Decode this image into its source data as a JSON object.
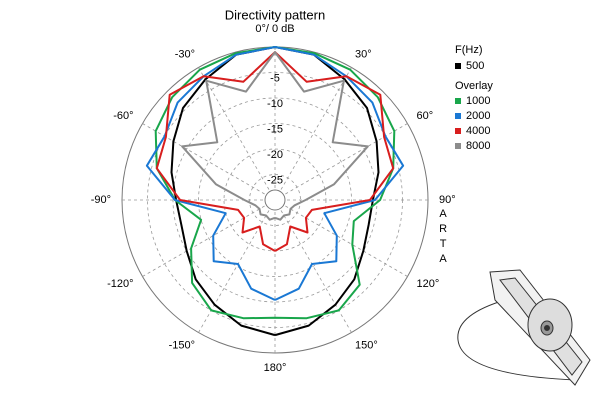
{
  "chart_data": {
    "type": "polar",
    "title": "Directivity pattern",
    "theta": [
      -180,
      -165,
      -150,
      -135,
      -120,
      -105,
      -90,
      -75,
      -60,
      -45,
      -30,
      -15,
      0,
      15,
      30,
      45,
      60,
      75,
      90,
      105,
      120,
      135,
      150,
      165,
      180
    ],
    "rlim": [
      -30,
      0
    ],
    "rticks": [
      -5,
      -10,
      -15,
      -20,
      -25
    ],
    "thetaticks": [
      {
        "value": 0,
        "label": "0°/ 0 dB"
      },
      {
        "value": 30,
        "label": "30°"
      },
      {
        "value": 60,
        "label": "60°"
      },
      {
        "value": 90,
        "label": "90°"
      },
      {
        "value": 120,
        "label": "120°"
      },
      {
        "value": 150,
        "label": "150°"
      },
      {
        "value": 180,
        "label": "180°"
      },
      {
        "value": -150,
        "label": "-150°"
      },
      {
        "value": -120,
        "label": "-120°"
      },
      {
        "value": -90,
        "label": "-90°"
      },
      {
        "value": -60,
        "label": "-60°"
      },
      {
        "value": -30,
        "label": "-30°"
      }
    ],
    "grid": true,
    "legend_title": "F(Hz)",
    "legend_subtitle": "Overlay",
    "watermark": "ARTA",
    "series": [
      {
        "name": "500",
        "color": "#000000",
        "values": [
          -3.5,
          -4.5,
          -6.3,
          -8,
          -10,
          -11,
          -10.6,
          -9,
          -7,
          -4.5,
          -2.7,
          -0.5,
          0,
          -0.5,
          -2.7,
          -4.5,
          -7,
          -9,
          -10.8,
          -11,
          -10,
          -8,
          -6.3,
          -4.5,
          -3.5
        ]
      },
      {
        "name": "1000",
        "color": "#19a64b",
        "values": [
          -6.9,
          -6,
          -5,
          -7,
          -11,
          -15,
          -10.4,
          -6,
          -3,
          -1.5,
          -0.5,
          -0.2,
          0,
          -0.2,
          -0.5,
          -1.5,
          -3,
          -6,
          -9.4,
          -14,
          -12.5,
          -6.5,
          -5,
          -6,
          -6.9
        ]
      },
      {
        "name": "2000",
        "color": "#1a78d4",
        "values": [
          -10.4,
          -12,
          -15.5,
          -13,
          -16,
          -20,
          -10.4,
          -4,
          -5,
          -3,
          -2,
          -0.5,
          0,
          -0.5,
          -2,
          -3,
          -5,
          -4,
          -10.4,
          -20,
          -16,
          -13,
          -15.5,
          -12,
          -10.4
        ]
      },
      {
        "name": "4000",
        "color": "#d81e1e",
        "values": [
          -20,
          -21,
          -24,
          -21,
          -23,
          -22.5,
          -11.4,
          -6,
          -5.3,
          -0.8,
          -2,
          -6,
          -1,
          -6,
          -2,
          -0.8,
          -5.3,
          -6,
          -11.4,
          -22.5,
          -23,
          -21,
          -24,
          -21,
          -20
        ]
      },
      {
        "name": "8000",
        "color": "#8c8c8c",
        "values": [
          -26.5,
          -26,
          -26.5,
          -26,
          -26.5,
          -26,
          -24,
          -18,
          -9,
          -14,
          -3,
          -8,
          -1,
          -8,
          -3,
          -14,
          -9,
          -18,
          -24,
          -26,
          -26.5,
          -26,
          -26.5,
          -26,
          -26.5
        ]
      }
    ]
  }
}
